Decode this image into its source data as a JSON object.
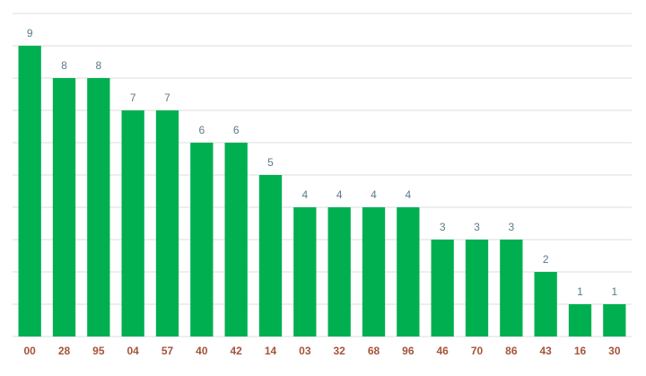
{
  "chart_data": {
    "type": "bar",
    "categories": [
      "00",
      "28",
      "95",
      "04",
      "57",
      "40",
      "42",
      "14",
      "03",
      "32",
      "68",
      "96",
      "46",
      "70",
      "86",
      "43",
      "16",
      "30"
    ],
    "values": [
      9,
      8,
      8,
      7,
      7,
      6,
      6,
      5,
      4,
      4,
      4,
      4,
      3,
      3,
      3,
      2,
      1,
      1
    ],
    "color": "#00b050",
    "ylim": [
      0,
      10
    ],
    "yticks": [
      0,
      1,
      2,
      3,
      4,
      5,
      6,
      7,
      8,
      9,
      10
    ],
    "grid": true
  }
}
